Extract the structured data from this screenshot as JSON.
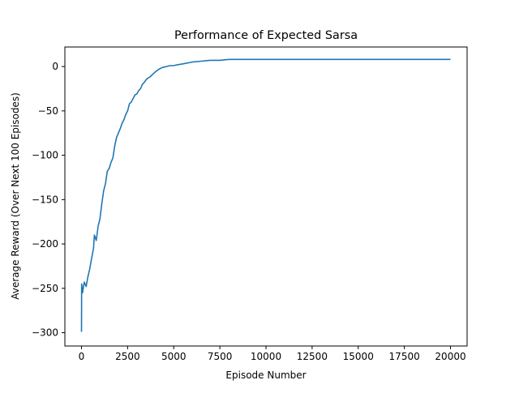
{
  "chart_data": {
    "type": "line",
    "title": "Performance of Expected Sarsa",
    "xlabel": "Episode Number",
    "ylabel": "Average Reward (Over Next 100 Episodes)",
    "xlim": [
      -900,
      20900
    ],
    "ylim": [
      -315,
      22
    ],
    "xticks": [
      0,
      2500,
      5000,
      7500,
      10000,
      12500,
      15000,
      17500,
      20000
    ],
    "xtick_labels": [
      "0",
      "2500",
      "5000",
      "7500",
      "10000",
      "12500",
      "15000",
      "17500",
      "20000"
    ],
    "yticks": [
      -300,
      -250,
      -200,
      -150,
      -100,
      -50,
      0
    ],
    "ytick_labels": [
      "−300",
      "−250",
      "−200",
      "−150",
      "−100",
      "−50",
      "0"
    ],
    "grid": false,
    "legend": "none",
    "series": [
      {
        "color": "#1f77b4",
        "x": [
          0,
          10,
          60,
          150,
          250,
          350,
          450,
          550,
          650,
          700,
          800,
          900,
          1000,
          1100,
          1200,
          1300,
          1400,
          1500,
          1600,
          1700,
          1800,
          1900,
          2000,
          2100,
          2200,
          2300,
          2400,
          2500,
          2600,
          2700,
          2800,
          2900,
          3000,
          3100,
          3200,
          3300,
          3400,
          3500,
          3600,
          3700,
          3800,
          3900,
          4000,
          4200,
          4400,
          4600,
          4800,
          5000,
          5200,
          5500,
          6000,
          6500,
          7000,
          7500,
          8000,
          8500,
          9000,
          9500,
          10000,
          11000,
          12000,
          13000,
          14000,
          15000,
          16000,
          17000,
          18000,
          19000,
          20000
        ],
        "y": [
          -299,
          -245,
          -255,
          -243,
          -248,
          -237,
          -228,
          -216,
          -205,
          -190,
          -196,
          -180,
          -172,
          -155,
          -140,
          -132,
          -118,
          -115,
          -108,
          -103,
          -90,
          -80,
          -75,
          -70,
          -64,
          -60,
          -54,
          -50,
          -42,
          -40,
          -36,
          -32,
          -31,
          -27,
          -25,
          -20,
          -18,
          -15,
          -13,
          -12,
          -10,
          -8,
          -6,
          -3,
          -1,
          0,
          1,
          1,
          2,
          3,
          5,
          6,
          7,
          7,
          8,
          8,
          8,
          8,
          8,
          8,
          8,
          8,
          8,
          8,
          8,
          8,
          8,
          8,
          8
        ]
      }
    ]
  }
}
